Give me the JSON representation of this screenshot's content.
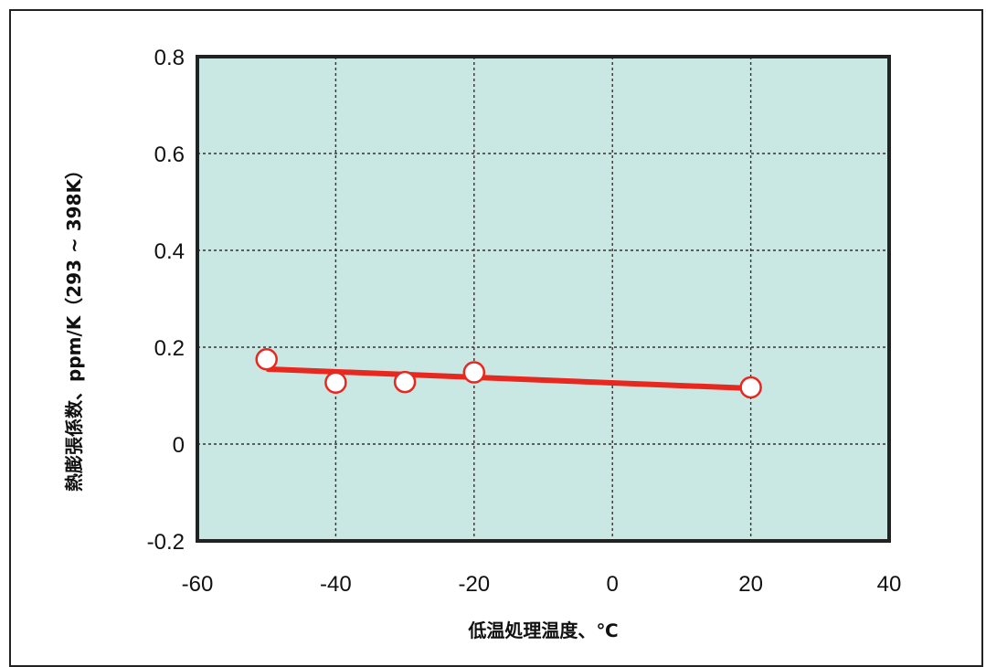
{
  "chart_data": {
    "type": "line",
    "title": "",
    "xlabel": "低温処理温度、℃",
    "ylabel": "熱膨張係数、ppm/K（293 ~ 398K）",
    "xlim": [
      -60,
      40
    ],
    "ylim": [
      -0.2,
      0.8
    ],
    "xticks": [
      "-60",
      "-40",
      "-20",
      "0",
      "20",
      "40"
    ],
    "xtick_values": [
      -60,
      -40,
      -20,
      0,
      20,
      40
    ],
    "yticks": [
      "0.8",
      "0.6",
      "0.4",
      "0.2",
      "0",
      "-0.2"
    ],
    "ytick_values": [
      0.8,
      0.6,
      0.4,
      0.2,
      0,
      -0.2
    ],
    "grid": true,
    "plot_background": "#c9e8e4",
    "series": [
      {
        "kind": "scatter",
        "marker": "open-circle",
        "marker_color": "#e8271f",
        "x": [
          -50,
          -40,
          -30,
          -20,
          20
        ],
        "y": [
          0.175,
          0.127,
          0.128,
          0.148,
          0.117
        ]
      },
      {
        "kind": "trendline",
        "color": "#e8271f",
        "x": [
          -50,
          20
        ],
        "y": [
          0.155,
          0.115
        ]
      }
    ]
  }
}
